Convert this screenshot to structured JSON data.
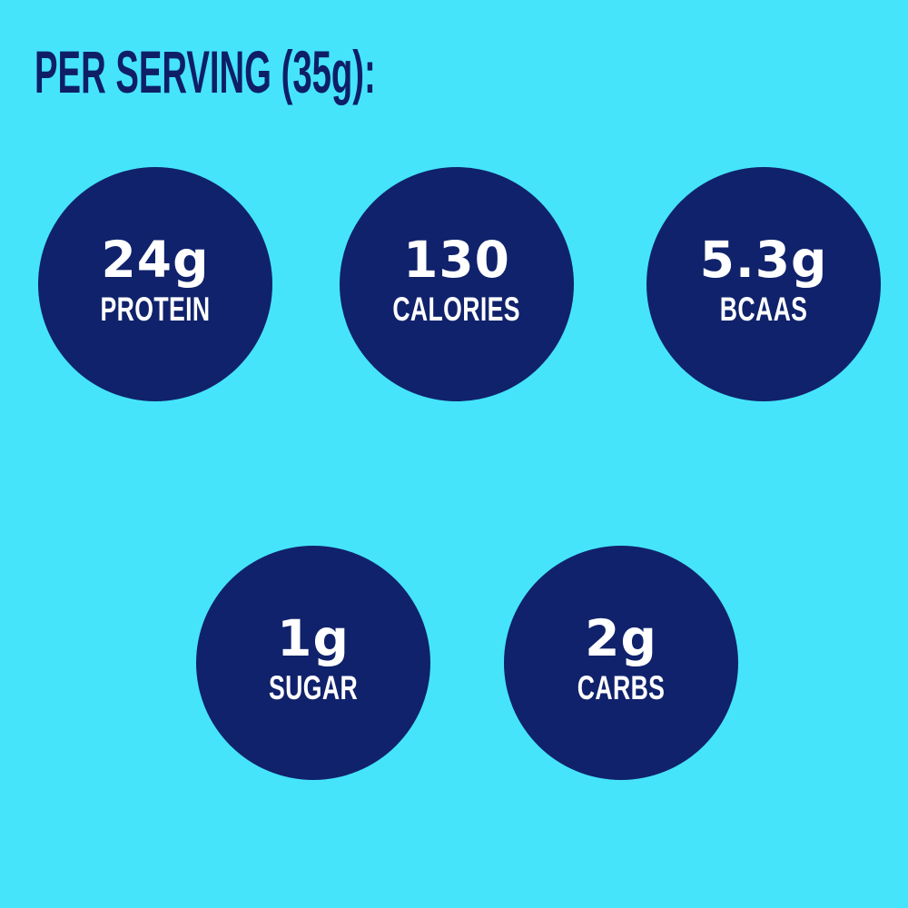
{
  "infographic": {
    "title": "PER SERVING (35g):",
    "colors": {
      "background": "#45E4FB",
      "circle_fill": "#10226B",
      "title_text": "#0E1F66",
      "circle_text": "#FFFFFF"
    },
    "stats": [
      {
        "value": "24g",
        "label": "PROTEIN"
      },
      {
        "value": "130",
        "label": "CALORIES"
      },
      {
        "value": "5.3g",
        "label": "BCAAS"
      },
      {
        "value": "1g",
        "label": "SUGAR"
      },
      {
        "value": "2g",
        "label": "CARBS"
      }
    ]
  }
}
